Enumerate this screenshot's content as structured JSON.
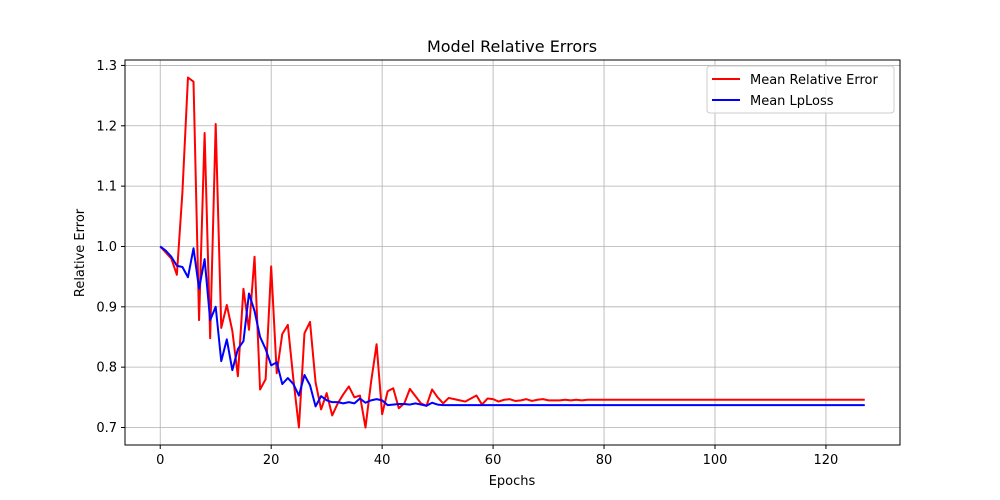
{
  "chart_data": {
    "type": "line",
    "title": "Model Relative Errors",
    "xlabel": "Epochs",
    "ylabel": "Relative Error",
    "xlim": [
      -6.35,
      133.35
    ],
    "ylim": [
      0.671,
      1.309
    ],
    "xticks": [
      0,
      20,
      40,
      60,
      80,
      100,
      120
    ],
    "yticks": [
      0.7,
      0.8,
      0.9,
      1.0,
      1.1,
      1.2,
      1.3
    ],
    "xtick_labels": [
      "0",
      "20",
      "40",
      "60",
      "80",
      "100",
      "120"
    ],
    "ytick_labels": [
      "0.7",
      "0.8",
      "0.9",
      "1.0",
      "1.1",
      "1.2",
      "1.3"
    ],
    "grid": true,
    "legend_position": "top-right",
    "series": [
      {
        "name": "Mean Relative Error",
        "color": "#ff0000",
        "x": [
          0,
          1,
          2,
          3,
          4,
          5,
          6,
          7,
          8,
          9,
          10,
          11,
          12,
          13,
          14,
          15,
          16,
          17,
          18,
          19,
          20,
          21,
          22,
          23,
          24,
          25,
          26,
          27,
          28,
          29,
          30,
          31,
          32,
          33,
          34,
          35,
          36,
          37,
          38,
          39,
          40,
          41,
          42,
          43,
          44,
          45,
          46,
          47,
          48,
          49,
          50,
          51,
          52,
          53,
          54,
          55,
          56,
          57,
          58,
          59,
          60,
          61,
          62,
          63,
          64,
          65,
          66,
          67,
          68,
          69,
          70,
          71,
          72,
          73,
          74,
          75,
          76,
          77,
          78,
          79,
          80,
          81,
          82,
          83,
          84,
          85,
          86,
          87,
          88,
          89,
          90,
          91,
          92,
          93,
          94,
          95,
          96,
          97,
          98,
          99,
          100,
          101,
          102,
          103,
          104,
          105,
          106,
          107,
          108,
          109,
          110,
          111,
          112,
          113,
          114,
          115,
          116,
          117,
          118,
          119,
          120,
          121,
          122,
          123,
          124,
          125,
          126,
          127
        ],
        "values": [
          1.0,
          0.99,
          0.98,
          0.953,
          1.09,
          1.28,
          1.273,
          0.878,
          1.188,
          0.848,
          1.203,
          0.865,
          0.903,
          0.86,
          0.785,
          0.93,
          0.862,
          0.983,
          0.763,
          0.78,
          0.967,
          0.79,
          0.855,
          0.87,
          0.78,
          0.7,
          0.856,
          0.875,
          0.775,
          0.73,
          0.757,
          0.72,
          0.74,
          0.755,
          0.768,
          0.75,
          0.753,
          0.7,
          0.775,
          0.838,
          0.722,
          0.76,
          0.765,
          0.732,
          0.74,
          0.764,
          0.752,
          0.74,
          0.736,
          0.763,
          0.75,
          0.74,
          0.749,
          0.747,
          0.745,
          0.743,
          0.748,
          0.753,
          0.738,
          0.748,
          0.747,
          0.743,
          0.746,
          0.747,
          0.744,
          0.745,
          0.747,
          0.744,
          0.746,
          0.747,
          0.745,
          0.745,
          0.745,
          0.746,
          0.745,
          0.746,
          0.745,
          0.746,
          0.746,
          0.746,
          0.746,
          0.746,
          0.746,
          0.746,
          0.746,
          0.746,
          0.746,
          0.746,
          0.746,
          0.746,
          0.746,
          0.746,
          0.746,
          0.746,
          0.746,
          0.746,
          0.746,
          0.746,
          0.746,
          0.746,
          0.746,
          0.746,
          0.746,
          0.746,
          0.746,
          0.746,
          0.746,
          0.746,
          0.746,
          0.746,
          0.746,
          0.746,
          0.746,
          0.746,
          0.746,
          0.746,
          0.746,
          0.746,
          0.746,
          0.746,
          0.746,
          0.746,
          0.746,
          0.746,
          0.746,
          0.746,
          0.746,
          0.746
        ]
      },
      {
        "name": "Mean LpLoss",
        "color": "#0000ff",
        "x": [
          0,
          1,
          2,
          3,
          4,
          5,
          6,
          7,
          8,
          9,
          10,
          11,
          12,
          13,
          14,
          15,
          16,
          17,
          18,
          19,
          20,
          21,
          22,
          23,
          24,
          25,
          26,
          27,
          28,
          29,
          30,
          31,
          32,
          33,
          34,
          35,
          36,
          37,
          38,
          39,
          40,
          41,
          42,
          43,
          44,
          45,
          46,
          47,
          48,
          49,
          50,
          51,
          52,
          53,
          54,
          55,
          56,
          57,
          58,
          59,
          60,
          61,
          62,
          63,
          64,
          65,
          66,
          67,
          68,
          69,
          70,
          71,
          72,
          73,
          74,
          75,
          76,
          77,
          78,
          79,
          80,
          81,
          82,
          83,
          84,
          85,
          86,
          87,
          88,
          89,
          90,
          91,
          92,
          93,
          94,
          95,
          96,
          97,
          98,
          99,
          100,
          101,
          102,
          103,
          104,
          105,
          106,
          107,
          108,
          109,
          110,
          111,
          112,
          113,
          114,
          115,
          116,
          117,
          118,
          119,
          120,
          121,
          122,
          123,
          124,
          125,
          126,
          127
        ],
        "values": [
          1.0,
          0.993,
          0.983,
          0.968,
          0.966,
          0.949,
          0.997,
          0.93,
          0.979,
          0.878,
          0.9,
          0.81,
          0.846,
          0.795,
          0.83,
          0.843,
          0.922,
          0.893,
          0.85,
          0.83,
          0.803,
          0.808,
          0.772,
          0.782,
          0.772,
          0.753,
          0.787,
          0.77,
          0.735,
          0.752,
          0.745,
          0.742,
          0.742,
          0.74,
          0.742,
          0.74,
          0.748,
          0.741,
          0.745,
          0.747,
          0.745,
          0.737,
          0.738,
          0.739,
          0.739,
          0.738,
          0.74,
          0.738,
          0.736,
          0.741,
          0.738,
          0.737,
          0.737,
          0.737,
          0.737,
          0.737,
          0.737,
          0.737,
          0.737,
          0.737,
          0.737,
          0.737,
          0.737,
          0.737,
          0.737,
          0.737,
          0.737,
          0.737,
          0.737,
          0.737,
          0.737,
          0.737,
          0.737,
          0.737,
          0.737,
          0.737,
          0.737,
          0.737,
          0.737,
          0.737,
          0.737,
          0.737,
          0.737,
          0.737,
          0.737,
          0.737,
          0.737,
          0.737,
          0.737,
          0.737,
          0.737,
          0.737,
          0.737,
          0.737,
          0.737,
          0.737,
          0.737,
          0.737,
          0.737,
          0.737,
          0.737,
          0.737,
          0.737,
          0.737,
          0.737,
          0.737,
          0.737,
          0.737,
          0.737,
          0.737,
          0.737,
          0.737,
          0.737,
          0.737,
          0.737,
          0.737,
          0.737,
          0.737,
          0.737,
          0.737,
          0.737,
          0.737,
          0.737,
          0.737,
          0.737,
          0.737,
          0.737,
          0.737
        ]
      }
    ]
  }
}
